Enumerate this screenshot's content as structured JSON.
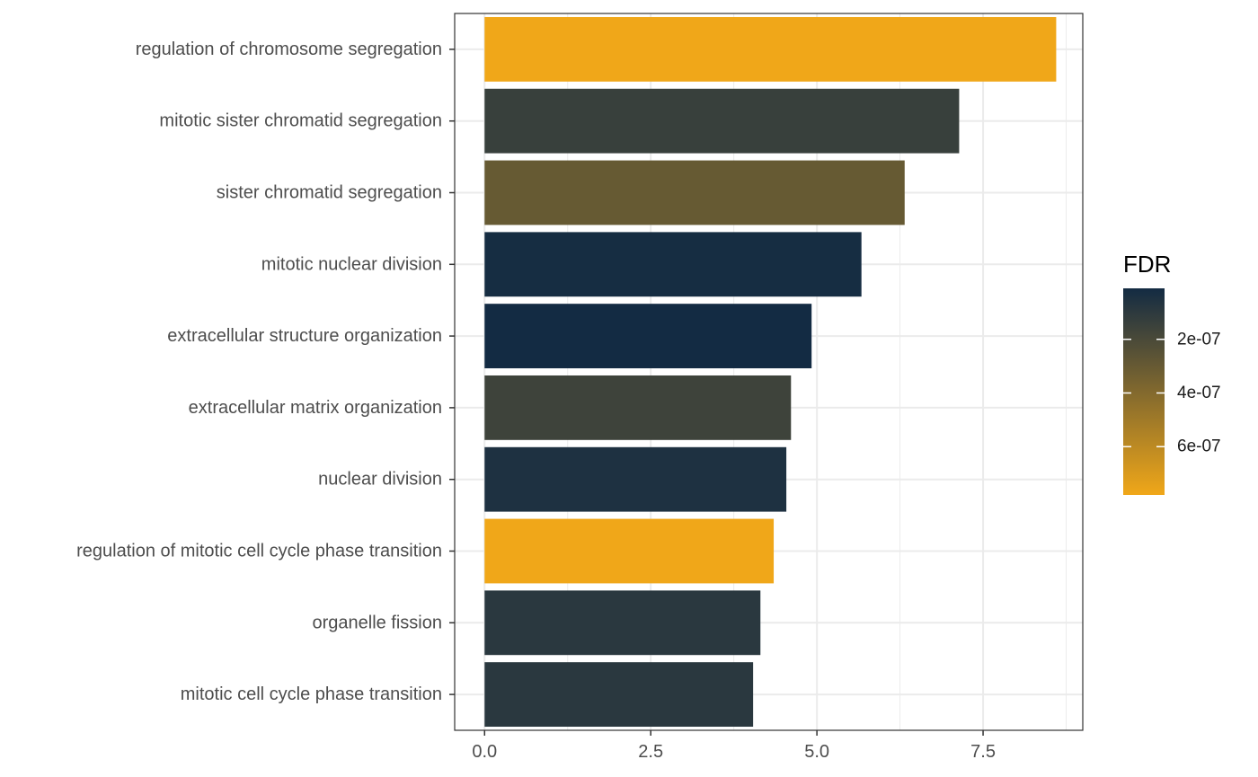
{
  "chart_data": {
    "type": "bar",
    "orientation": "horizontal",
    "title": "",
    "xlabel": "",
    "ylabel": "",
    "xlim": [
      -0.45,
      9.0
    ],
    "x_ticks": [
      0.0,
      2.5,
      5.0,
      7.5
    ],
    "x_tick_labels": [
      "0.0",
      "2.5",
      "5.0",
      "7.5"
    ],
    "grid": true,
    "categories": [
      "regulation of chromosome segregation",
      "mitotic sister chromatid segregation",
      "sister chromatid segregation",
      "mitotic nuclear division",
      "extracellular structure organization",
      "extracellular matrix organization",
      "nuclear division",
      "regulation of mitotic cell cycle phase transition",
      "organelle fission",
      "mitotic cell cycle phase transition"
    ],
    "values": [
      8.6,
      7.14,
      6.32,
      5.67,
      4.92,
      4.61,
      4.54,
      4.35,
      4.15,
      4.04
    ],
    "fdr": [
      7.8e-07,
      1.4e-07,
      3e-07,
      2e-08,
      1e-08,
      1.6e-07,
      5e-08,
      7.8e-07,
      9e-08,
      9e-08
    ],
    "legend": {
      "title": "FDR",
      "position": "right",
      "ticks": [
        2e-07,
        4e-07,
        6e-07
      ],
      "tick_labels": [
        "2e-07",
        "4e-07",
        "6e-07"
      ],
      "range": [
        1e-08,
        7.8e-07
      ],
      "low_color": "#132B43",
      "high_color": "#F0A719"
    }
  }
}
